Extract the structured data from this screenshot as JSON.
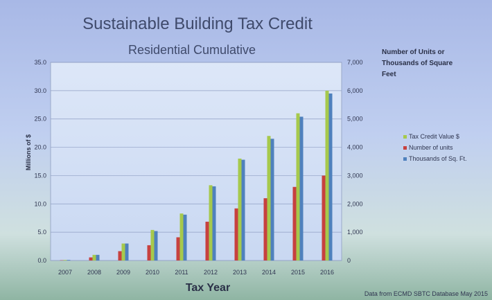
{
  "colors": {
    "tax_credit": "#a6c94c",
    "units": "#c7413f",
    "sqft": "#4f81bd"
  },
  "chart_data": {
    "type": "bar",
    "title": "Sustainable Building Tax Credit",
    "subtitle": "Residential Cumulative",
    "xlabel": "Tax Year",
    "ylabel": "Millions of $",
    "y2label": "Number of Units  or Thousands of Square Feet",
    "source": "Data from ECMD SBTC Database May 2015",
    "categories": [
      "2007",
      "2008",
      "2009",
      "2010",
      "2011",
      "2012",
      "2013",
      "2014",
      "2015",
      "2016"
    ],
    "ylim": [
      0,
      35
    ],
    "y2lim": [
      0,
      7000
    ],
    "y_ticks": [
      "0.0",
      "5.0",
      "10.0",
      "15.0",
      "20.0",
      "25.0",
      "30.0",
      "35.0"
    ],
    "y2_ticks": [
      "0",
      "1,000",
      "2,000",
      "3,000",
      "4,000",
      "5,000",
      "6,000",
      "7,000"
    ],
    "grid": true,
    "legend_position": "right",
    "series": [
      {
        "name": "Tax Credit Value $",
        "axis": "left",
        "values": [
          0.1,
          1.0,
          3.0,
          5.4,
          8.3,
          13.3,
          18.0,
          22.0,
          26.0,
          30.0
        ]
      },
      {
        "name": "Number of units",
        "axis": "right",
        "values": [
          10,
          110,
          330,
          540,
          820,
          1370,
          1840,
          2200,
          2600,
          3000
        ]
      },
      {
        "name": "Thousands of Sq. Ft.",
        "axis": "right",
        "values": [
          20,
          200,
          600,
          1040,
          1620,
          2620,
          3560,
          4300,
          5080,
          5900
        ]
      }
    ]
  }
}
